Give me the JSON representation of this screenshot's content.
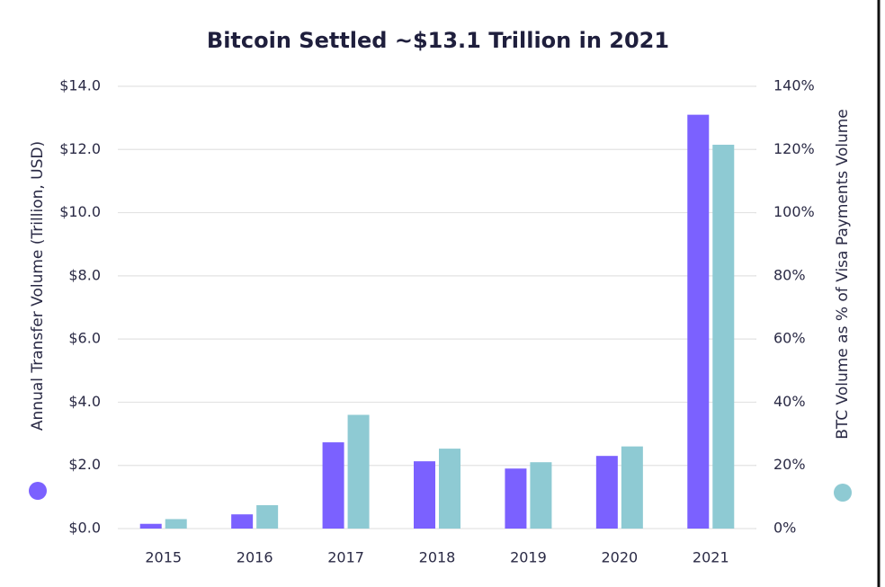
{
  "chart_data": {
    "type": "bar",
    "title": "Bitcoin Settled ~$13.1 Trillion in 2021",
    "categories": [
      "2015",
      "2016",
      "2017",
      "2018",
      "2019",
      "2020",
      "2021"
    ],
    "series": [
      {
        "name": "Annual Transfer Volume (Trillion, USD)",
        "color": "#7b61ff",
        "values": [
          0.15,
          0.45,
          2.73,
          2.13,
          1.9,
          2.3,
          13.1
        ]
      },
      {
        "name": "BTC Volume as % of Visa Payments Volume",
        "color": "#8ecad3",
        "axis": "y2",
        "values": [
          3,
          7.4,
          36,
          25.3,
          21,
          26,
          121.5
        ]
      }
    ],
    "ylim": [
      0,
      14
    ],
    "yticks": [
      {
        "value": 0,
        "label": "$0.0"
      },
      {
        "value": 2,
        "label": "$2.0"
      },
      {
        "value": 4,
        "label": "$4.0"
      },
      {
        "value": 6,
        "label": "$6.0"
      },
      {
        "value": 8,
        "label": "$8.0"
      },
      {
        "value": 10,
        "label": "$10.0"
      },
      {
        "value": 12,
        "label": "$12.0"
      },
      {
        "value": 14,
        "label": "$14.0"
      }
    ],
    "y2lim": [
      0,
      140
    ],
    "y2ticks": [
      {
        "value": 0,
        "label": "0%"
      },
      {
        "value": 20,
        "label": "20%"
      },
      {
        "value": 40,
        "label": "40%"
      },
      {
        "value": 60,
        "label": "60%"
      },
      {
        "value": 80,
        "label": "80%"
      },
      {
        "value": 100,
        "label": "100%"
      },
      {
        "value": 120,
        "label": "120%"
      },
      {
        "value": 140,
        "label": "140%"
      }
    ],
    "grid": true
  }
}
